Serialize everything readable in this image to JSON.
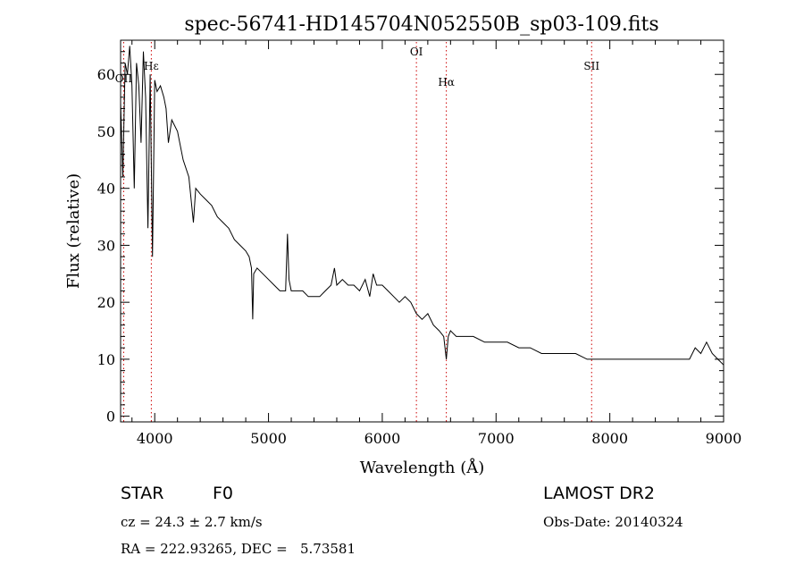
{
  "chart_data": {
    "type": "line",
    "title": "spec-56741-HD145704N052550B_sp03-109.fits",
    "xlabel": "Wavelength (Å)",
    "ylabel": "Flux (relative)",
    "xlim": [
      3700,
      9000
    ],
    "ylim": [
      -1,
      66
    ],
    "x_ticks": [
      4000,
      5000,
      6000,
      7000,
      8000,
      9000
    ],
    "y_ticks": [
      0,
      10,
      20,
      30,
      40,
      50,
      60
    ],
    "grid": false,
    "series": [
      {
        "x": [
          3700,
          3720,
          3740,
          3760,
          3780,
          3800,
          3820,
          3840,
          3860,
          3880,
          3900,
          3920,
          3940,
          3960,
          3980,
          4000,
          4020,
          4050,
          4080,
          4100,
          4120,
          4150,
          4200,
          4250,
          4300,
          4340,
          4360,
          4400,
          4450,
          4500,
          4550,
          4600,
          4650,
          4700,
          4750,
          4800,
          4830,
          4850,
          4861,
          4870,
          4900,
          4950,
          5000,
          5050,
          5100,
          5150,
          5167,
          5180,
          5200,
          5250,
          5300,
          5350,
          5400,
          5450,
          5500,
          5550,
          5580,
          5600,
          5650,
          5700,
          5750,
          5800,
          5850,
          5890,
          5920,
          5950,
          6000,
          6050,
          6100,
          6150,
          6200,
          6250,
          6300,
          6350,
          6400,
          6450,
          6500,
          6540,
          6563,
          6580,
          6600,
          6650,
          6700,
          6800,
          6900,
          7000,
          7100,
          7200,
          7300,
          7400,
          7500,
          7600,
          7700,
          7800,
          7900,
          8000,
          8100,
          8200,
          8300,
          8400,
          8500,
          8600,
          8700,
          8750,
          8800,
          8850,
          8900,
          8950,
          9000
        ],
        "y": [
          55,
          42,
          62,
          60,
          65,
          58,
          40,
          62,
          58,
          48,
          64,
          56,
          33,
          60,
          28,
          59,
          57,
          58,
          56,
          54,
          48,
          52,
          50,
          45,
          42,
          34,
          40,
          39,
          38,
          37,
          35,
          34,
          33,
          31,
          30,
          29,
          28,
          26,
          17,
          25,
          26,
          25,
          24,
          23,
          22,
          22,
          32,
          24,
          22,
          22,
          22,
          21,
          21,
          21,
          22,
          23,
          26,
          23,
          24,
          23,
          23,
          22,
          24,
          21,
          25,
          23,
          23,
          22,
          21,
          20,
          21,
          20,
          18,
          17,
          18,
          16,
          15,
          14,
          10,
          14,
          15,
          14,
          14,
          14,
          13,
          13,
          13,
          12,
          12,
          11,
          11,
          11,
          11,
          10,
          10,
          10,
          10,
          10,
          10,
          10,
          10,
          10,
          10,
          12,
          11,
          13,
          11,
          10,
          9
        ]
      }
    ],
    "annotations": [
      {
        "text": "OII",
        "x": 3727
      },
      {
        "text": "Hε",
        "x": 3970
      },
      {
        "text": "OI",
        "x": 6300
      },
      {
        "text": "Hα",
        "x": 6563
      },
      {
        "text": "SII",
        "x": 7840
      }
    ]
  },
  "info": {
    "object_class": "STAR",
    "subclass": "F0",
    "survey": "LAMOST DR2",
    "cz": "cz = 24.3 ± 2.7 km/s",
    "obs_date": "Obs-Date: 20140324",
    "coords": "RA = 222.93265, DEC =   5.73581"
  }
}
